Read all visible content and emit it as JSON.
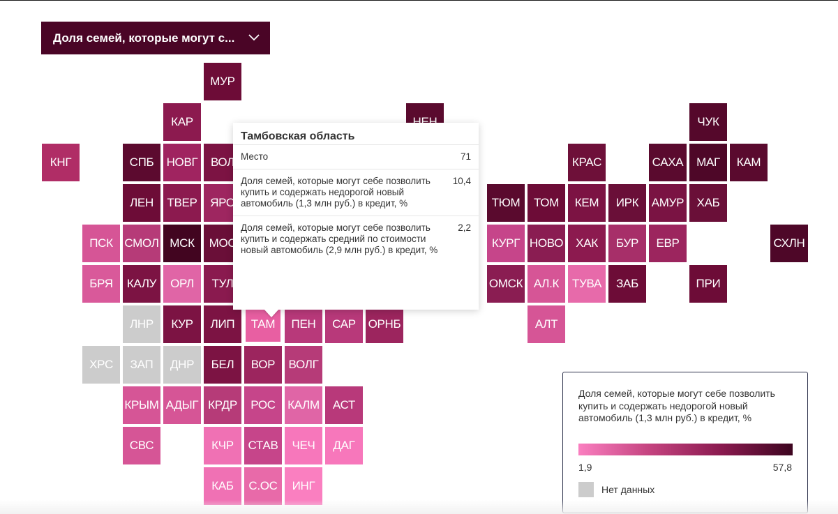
{
  "dropdown": {
    "label": "Доля семей, которые могут с...",
    "icon": "chevron-down-icon"
  },
  "colors": {
    "low": "#fa7fc0",
    "high": "#3d0520",
    "no_data": "#cccccc",
    "header_bg": "#4a0526"
  },
  "map": {
    "tiles": [
      {
        "code": "МУР",
        "col": 5,
        "row": 0,
        "color": "#6d0c37"
      },
      {
        "code": "КАР",
        "col": 4,
        "row": 1,
        "color": "#8c1a4f"
      },
      {
        "code": "НЕН",
        "col": 10,
        "row": 1,
        "color": "#5a0a2e"
      },
      {
        "code": "ЧУК",
        "col": 17,
        "row": 1,
        "color": "#55082b"
      },
      {
        "code": "КНГ",
        "col": 1,
        "row": 2,
        "color": "#b02d66"
      },
      {
        "code": "СПБ",
        "col": 3,
        "row": 2,
        "color": "#5c0a2f"
      },
      {
        "code": "НОВГ",
        "col": 4,
        "row": 2,
        "color": "#a02460"
      },
      {
        "code": "ВОЛ",
        "col": 5,
        "row": 2,
        "color": "#7c1343"
      },
      {
        "code": "КРАС",
        "col": 14,
        "row": 2,
        "color": "#6e1039"
      },
      {
        "code": "САХА",
        "col": 16,
        "row": 2,
        "color": "#5a0a2e"
      },
      {
        "code": "МАГ",
        "col": 17,
        "row": 2,
        "color": "#4e0728"
      },
      {
        "code": "КАМ",
        "col": 18,
        "row": 2,
        "color": "#5a0a2e"
      },
      {
        "code": "ЛЕН",
        "col": 3,
        "row": 3,
        "color": "#6d0c37"
      },
      {
        "code": "ТВЕР",
        "col": 4,
        "row": 3,
        "color": "#8c1a4f"
      },
      {
        "code": "ЯРО",
        "col": 5,
        "row": 3,
        "color": "#9e2660"
      },
      {
        "code": "ТЮМ",
        "col": 12,
        "row": 3,
        "color": "#5a0a2e"
      },
      {
        "code": "ТОМ",
        "col": 13,
        "row": 3,
        "color": "#6d0c37"
      },
      {
        "code": "КЕМ",
        "col": 14,
        "row": 3,
        "color": "#7c1343"
      },
      {
        "code": "ИРК",
        "col": 15,
        "row": 3,
        "color": "#6a0f38"
      },
      {
        "code": "АМУР",
        "col": 16,
        "row": 3,
        "color": "#7a1343"
      },
      {
        "code": "ХАБ",
        "col": 17,
        "row": 3,
        "color": "#6a0f38"
      },
      {
        "code": "ПСК",
        "col": 2,
        "row": 4,
        "color": "#d65596"
      },
      {
        "code": "СМОЛ",
        "col": 3,
        "row": 4,
        "color": "#b63b78"
      },
      {
        "code": "МСК",
        "col": 4,
        "row": 4,
        "color": "#420520"
      },
      {
        "code": "МОС",
        "col": 5,
        "row": 4,
        "color": "#6a0f38"
      },
      {
        "code": "КУРГ",
        "col": 12,
        "row": 4,
        "color": "#c6458a"
      },
      {
        "code": "НОВО",
        "col": 13,
        "row": 4,
        "color": "#8a1d52"
      },
      {
        "code": "ХАК",
        "col": 14,
        "row": 4,
        "color": "#8c1a4f"
      },
      {
        "code": "БУР",
        "col": 15,
        "row": 4,
        "color": "#a72f69"
      },
      {
        "code": "ЕВР",
        "col": 16,
        "row": 4,
        "color": "#9c255e"
      },
      {
        "code": "СХЛН",
        "col": 19,
        "row": 4,
        "color": "#4e0728"
      },
      {
        "code": "БРЯ",
        "col": 2,
        "row": 5,
        "color": "#d9599a"
      },
      {
        "code": "КАЛУ",
        "col": 3,
        "row": 5,
        "color": "#7c1343"
      },
      {
        "code": "ОРЛ",
        "col": 4,
        "row": 5,
        "color": "#e065a6"
      },
      {
        "code": "ТУЛ",
        "col": 5,
        "row": 5,
        "color": "#8a1a4f"
      },
      {
        "code": "ОМСК",
        "col": 12,
        "row": 5,
        "color": "#8a1d52"
      },
      {
        "code": "АЛ.К",
        "col": 13,
        "row": 5,
        "color": "#d65596"
      },
      {
        "code": "ТУВА",
        "col": 14,
        "row": 5,
        "color": "#e76aaa"
      },
      {
        "code": "ЗАБ",
        "col": 15,
        "row": 5,
        "color": "#6d0c37"
      },
      {
        "code": "ПРИ",
        "col": 17,
        "row": 5,
        "color": "#6d0c37"
      },
      {
        "code": "ЛНР",
        "col": 3,
        "row": 6,
        "color": "#cccccc"
      },
      {
        "code": "КУР",
        "col": 4,
        "row": 6,
        "color": "#7c1343"
      },
      {
        "code": "ЛИП",
        "col": 5,
        "row": 6,
        "color": "#7c1343"
      },
      {
        "code": "ТАМ",
        "col": 6,
        "row": 6,
        "color": "#e85fa2",
        "selected": true
      },
      {
        "code": "ПЕН",
        "col": 7,
        "row": 6,
        "color": "#b8397a"
      },
      {
        "code": "САР",
        "col": 8,
        "row": 6,
        "color": "#b8397a"
      },
      {
        "code": "ОРНБ",
        "col": 9,
        "row": 6,
        "color": "#9c255e"
      },
      {
        "code": "АЛТ",
        "col": 13,
        "row": 6,
        "color": "#d65596"
      },
      {
        "code": "ХРС",
        "col": 2,
        "row": 7,
        "color": "#cccccc"
      },
      {
        "code": "ЗАП",
        "col": 3,
        "row": 7,
        "color": "#cccccc"
      },
      {
        "code": "ДНР",
        "col": 4,
        "row": 7,
        "color": "#cccccc"
      },
      {
        "code": "БЕЛ",
        "col": 5,
        "row": 7,
        "color": "#7c1343"
      },
      {
        "code": "ВОР",
        "col": 6,
        "row": 7,
        "color": "#9c255e"
      },
      {
        "code": "ВОЛГ",
        "col": 7,
        "row": 7,
        "color": "#b63b78"
      },
      {
        "code": "КРЫМ",
        "col": 3,
        "row": 8,
        "color": "#d65596"
      },
      {
        "code": "АДЫГ",
        "col": 4,
        "row": 8,
        "color": "#d65596"
      },
      {
        "code": "КРДР",
        "col": 5,
        "row": 8,
        "color": "#b63b78"
      },
      {
        "code": "РОС",
        "col": 6,
        "row": 8,
        "color": "#c6458a"
      },
      {
        "code": "КАЛМ",
        "col": 7,
        "row": 8,
        "color": "#e065a6"
      },
      {
        "code": "АСТ",
        "col": 8,
        "row": 8,
        "color": "#b8397a"
      },
      {
        "code": "СВС",
        "col": 3,
        "row": 9,
        "color": "#d65596"
      },
      {
        "code": "КЧР",
        "col": 5,
        "row": 9,
        "color": "#f071b4"
      },
      {
        "code": "СТАВ",
        "col": 6,
        "row": 9,
        "color": "#c6458a"
      },
      {
        "code": "ЧЕЧ",
        "col": 7,
        "row": 9,
        "color": "#f777bb"
      },
      {
        "code": "ДАГ",
        "col": 8,
        "row": 9,
        "color": "#f777bb"
      },
      {
        "code": "КАБ",
        "col": 5,
        "row": 10,
        "color": "#f071b4"
      },
      {
        "code": "С.ОС",
        "col": 6,
        "row": 10,
        "color": "#e86aa9"
      },
      {
        "code": "ИНГ",
        "col": 7,
        "row": 10,
        "color": "#fa7fc0"
      }
    ]
  },
  "tooltip": {
    "title": "Тамбовская область",
    "rows": [
      {
        "label": "Место",
        "value": "71"
      },
      {
        "label": "Доля семей, которые могут себе позволить купить и содержать недорогой новый автомобиль (1,3 млн руб.) в кредит, %",
        "value": "10,4"
      },
      {
        "label": "Доля семей, которые могут себе позволить купить и содержать средний по стоимости новый автомобиль (2,9 млн руб.) в кредит, %",
        "value": "2,2"
      }
    ]
  },
  "legend": {
    "title": "Доля семей, которые могут себе позволить купить и содержать недорогой новый автомобиль (1,3 млн руб.) в кредит, %",
    "min": "1,9",
    "max": "57,8",
    "no_data": "Нет данных"
  }
}
